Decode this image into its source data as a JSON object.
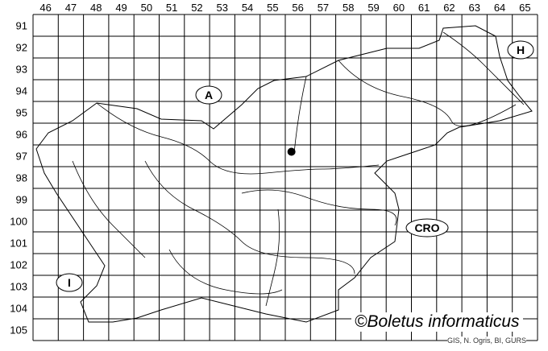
{
  "map": {
    "column_labels": [
      "46",
      "47",
      "48",
      "49",
      "50",
      "51",
      "52",
      "53",
      "54",
      "55",
      "56",
      "57",
      "58",
      "59",
      "60",
      "61",
      "62",
      "63",
      "64",
      "65"
    ],
    "row_labels": [
      "91",
      "92",
      "93",
      "94",
      "95",
      "96",
      "97",
      "98",
      "99",
      "100",
      "101",
      "102",
      "103",
      "104",
      "105"
    ],
    "country_labels": {
      "austria": "A",
      "hungary": "H",
      "croatia": "CRO",
      "italy": "I"
    },
    "occurrence_point": {
      "column": "56",
      "row": "97"
    },
    "line_color": "#000000",
    "marker_color": "#000000"
  },
  "credit": "©Boletus informaticus",
  "source": "GIS, N. Ogris, BI, GURS"
}
